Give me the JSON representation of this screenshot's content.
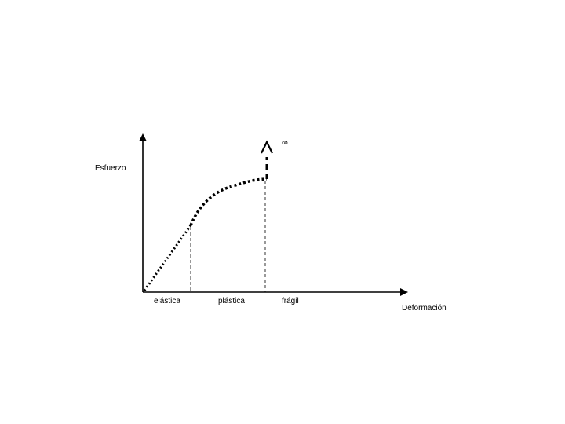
{
  "diagram": {
    "y_axis_label": "Esfuerzo",
    "x_axis_label": "Deformación",
    "regions": [
      "elástica",
      "plástica",
      "frágil"
    ],
    "infinity_symbol": "∞"
  }
}
